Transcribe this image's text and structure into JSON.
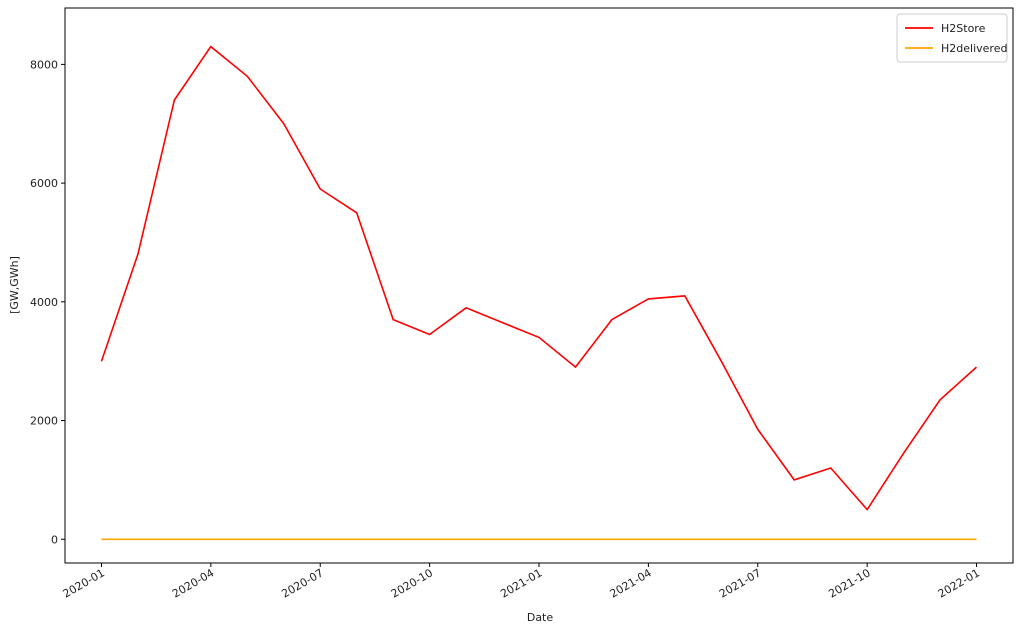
{
  "chart_data": {
    "type": "line",
    "xlabel": "Date",
    "ylabel": "[GW,GWh]",
    "x": [
      "2020-01",
      "2020-02",
      "2020-03",
      "2020-04",
      "2020-05",
      "2020-06",
      "2020-07",
      "2020-08",
      "2020-09",
      "2020-10",
      "2020-11",
      "2020-12",
      "2021-01",
      "2021-02",
      "2021-03",
      "2021-04",
      "2021-05",
      "2021-06",
      "2021-07",
      "2021-08",
      "2021-09",
      "2021-10",
      "2021-11",
      "2021-12",
      "2022-01"
    ],
    "series": [
      {
        "name": "H2Store",
        "color": "#ff0000",
        "values": [
          3000,
          4800,
          7400,
          8300,
          7800,
          7000,
          5900,
          5500,
          3700,
          3450,
          3900,
          3650,
          3400,
          2900,
          3700,
          4050,
          4100,
          3000,
          1850,
          1000,
          1200,
          500,
          1450,
          2350,
          2900
        ]
      },
      {
        "name": "H2delivered",
        "color": "#ffa500",
        "values": [
          0,
          0,
          0,
          0,
          0,
          0,
          0,
          0,
          0,
          0,
          0,
          0,
          0,
          0,
          0,
          0,
          0,
          0,
          0,
          0,
          0,
          0,
          0,
          0,
          0
        ]
      }
    ],
    "xlim": [
      "2019-12",
      "2022-02"
    ],
    "xticks": [
      "2020-01",
      "2020-04",
      "2020-07",
      "2020-10",
      "2021-01",
      "2021-04",
      "2021-07",
      "2021-10",
      "2022-01"
    ],
    "ylim": [
      -400,
      8950
    ],
    "yticks": [
      0,
      2000,
      4000,
      6000,
      8000
    ],
    "grid": false,
    "legend": "upper right"
  }
}
